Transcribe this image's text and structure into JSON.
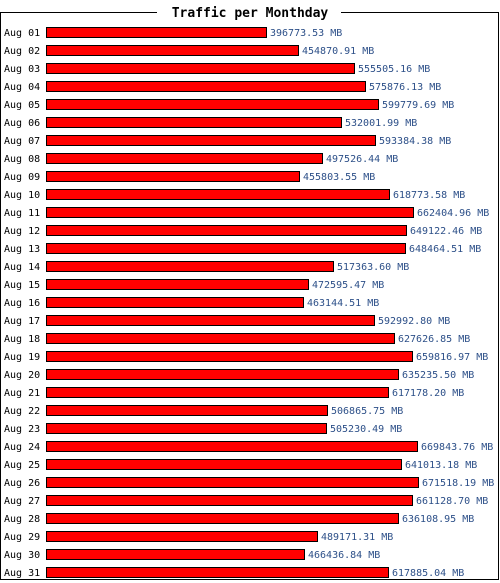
{
  "chart_data": {
    "type": "bar",
    "orientation": "horizontal",
    "title": "Traffic per Monthday",
    "unit": "MB",
    "colors": {
      "bar": "#ff0000",
      "bar_outline": "#000000",
      "value_text": "#2c4f88",
      "frame": "#000000"
    },
    "categories": [
      "Aug 01",
      "Aug 02",
      "Aug 03",
      "Aug 04",
      "Aug 05",
      "Aug 06",
      "Aug 07",
      "Aug 08",
      "Aug 09",
      "Aug 10",
      "Aug 11",
      "Aug 12",
      "Aug 13",
      "Aug 14",
      "Aug 15",
      "Aug 16",
      "Aug 17",
      "Aug 18",
      "Aug 19",
      "Aug 20",
      "Aug 21",
      "Aug 22",
      "Aug 23",
      "Aug 24",
      "Aug 25",
      "Aug 26",
      "Aug 27",
      "Aug 28",
      "Aug 29",
      "Aug 30",
      "Aug 31"
    ],
    "values": [
      396773.53,
      454870.91,
      555505.16,
      575876.13,
      599779.69,
      532001.99,
      593384.38,
      497526.44,
      455803.55,
      618773.58,
      662404.96,
      649122.46,
      648464.51,
      517363.6,
      472595.47,
      463144.51,
      592992.8,
      627626.85,
      659816.97,
      635235.5,
      617178.2,
      506865.75,
      505230.49,
      669843.76,
      641013.18,
      671518.19,
      661128.7,
      636108.95,
      489171.31,
      466436.84,
      617885.04
    ],
    "value_labels": [
      "396773.53 MB",
      "454870.91 MB",
      "555505.16 MB",
      "575876.13 MB",
      "599779.69 MB",
      "532001.99 MB",
      "593384.38 MB",
      "497526.44 MB",
      "455803.55 MB",
      "618773.58 MB",
      "662404.96 MB",
      "649122.46 MB",
      "648464.51 MB",
      "517363.60 MB",
      "472595.47 MB",
      "463144.51 MB",
      "592992.80 MB",
      "627626.85 MB",
      "659816.97 MB",
      "635235.50 MB",
      "617178.20 MB",
      "506865.75 MB",
      "505230.49 MB",
      "669843.76 MB",
      "641013.18 MB",
      "671518.19 MB",
      "661128.70 MB",
      "636108.95 MB",
      "489171.31 MB",
      "466436.84 MB",
      "617885.04 MB"
    ],
    "grid": false
  }
}
